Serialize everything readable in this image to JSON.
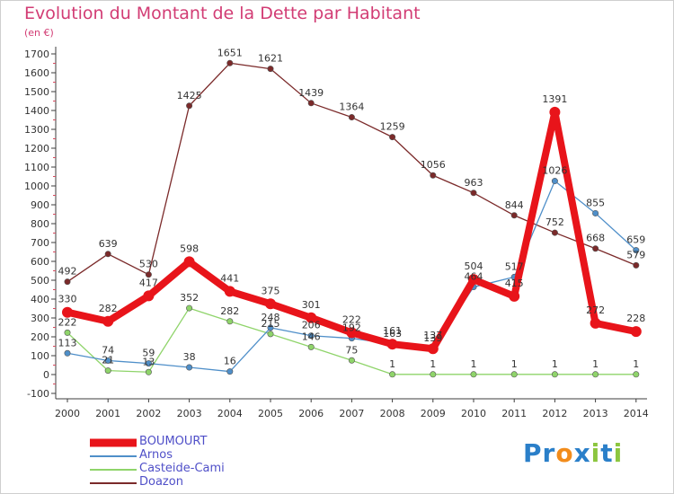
{
  "header": {
    "title": "Evolution du Montant de la Dette par Habitant",
    "unit": "(en €)"
  },
  "brand": {
    "name": "Proxiti",
    "letters": [
      "P",
      "r",
      "o",
      "x",
      "i",
      "t",
      "i"
    ],
    "colors": [
      "#2a7fc9",
      "#2a7fc9",
      "#f28c1b",
      "#2a7fc9",
      "#8cc63f",
      "#2a7fc9",
      "#8cc63f"
    ]
  },
  "chart_data": {
    "type": "line",
    "title": "Evolution du Montant de la Dette par Habitant",
    "subtitle": "(en €)",
    "x": [
      "2000",
      "2001",
      "2002",
      "2003",
      "2004",
      "2005",
      "2006",
      "2007",
      "2008",
      "2009",
      "2010",
      "2011",
      "2012",
      "2013",
      "2014"
    ],
    "ylim": [
      -100,
      1700
    ],
    "yticks": [
      -100,
      0,
      100,
      200,
      300,
      400,
      500,
      600,
      700,
      800,
      900,
      1000,
      1100,
      1200,
      1300,
      1400,
      1500,
      1600,
      1700
    ],
    "grid": false,
    "legend_position": "bottom-left",
    "series": [
      {
        "name": "BOUMOURT",
        "color": "#e8141a",
        "values": [
          330,
          282,
          417,
          598,
          441,
          375,
          301,
          222,
          161,
          137,
          504,
          415,
          1391,
          272,
          228
        ]
      },
      {
        "name": "Arnos",
        "color": "#4f8fc9",
        "values": [
          113,
          74,
          59,
          38,
          16,
          248,
          206,
          192,
          163,
          139,
          464,
          517,
          1026,
          855,
          659
        ]
      },
      {
        "name": "Casteide-Cami",
        "color": "#8fd46a",
        "values": [
          222,
          21,
          13,
          352,
          282,
          215,
          146,
          75,
          1,
          1,
          1,
          1,
          1,
          1,
          1
        ]
      },
      {
        "name": "Doazon",
        "color": "#7b2a2a",
        "values": [
          492,
          639,
          530,
          1425,
          1651,
          1621,
          1439,
          1364,
          1259,
          1056,
          963,
          844,
          752,
          668,
          579
        ]
      }
    ]
  }
}
